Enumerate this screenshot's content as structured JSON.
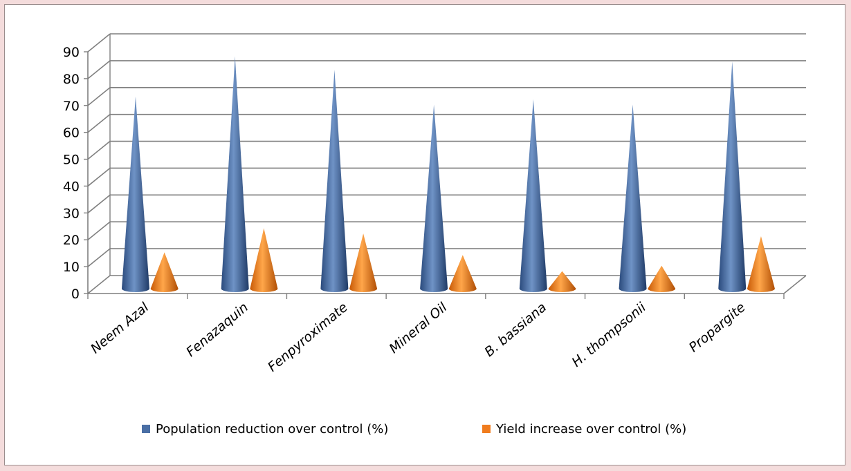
{
  "chart_data": {
    "type": "bar",
    "style": "3d-cone",
    "categories": [
      "Neem Azal",
      "Fenazaquin",
      "Fenpyroximate",
      "Mineral Oil",
      "B. bassiana",
      "H. thompsonii",
      "Propargite"
    ],
    "series": [
      {
        "name": "Population reduction over control (%)",
        "color": "#4a6fa5",
        "values": [
          71,
          86,
          81,
          68,
          70,
          68,
          84
        ]
      },
      {
        "name": "Yield increase over control (%)",
        "color": "#f07c1e",
        "values": [
          13,
          22,
          20,
          12,
          6,
          8,
          19
        ]
      }
    ],
    "ylim": [
      0,
      90
    ],
    "yticks": [
      "0",
      "10",
      "20",
      "30",
      "40",
      "50",
      "60",
      "70",
      "80",
      "90"
    ],
    "grid": true,
    "legend": "bottom"
  }
}
